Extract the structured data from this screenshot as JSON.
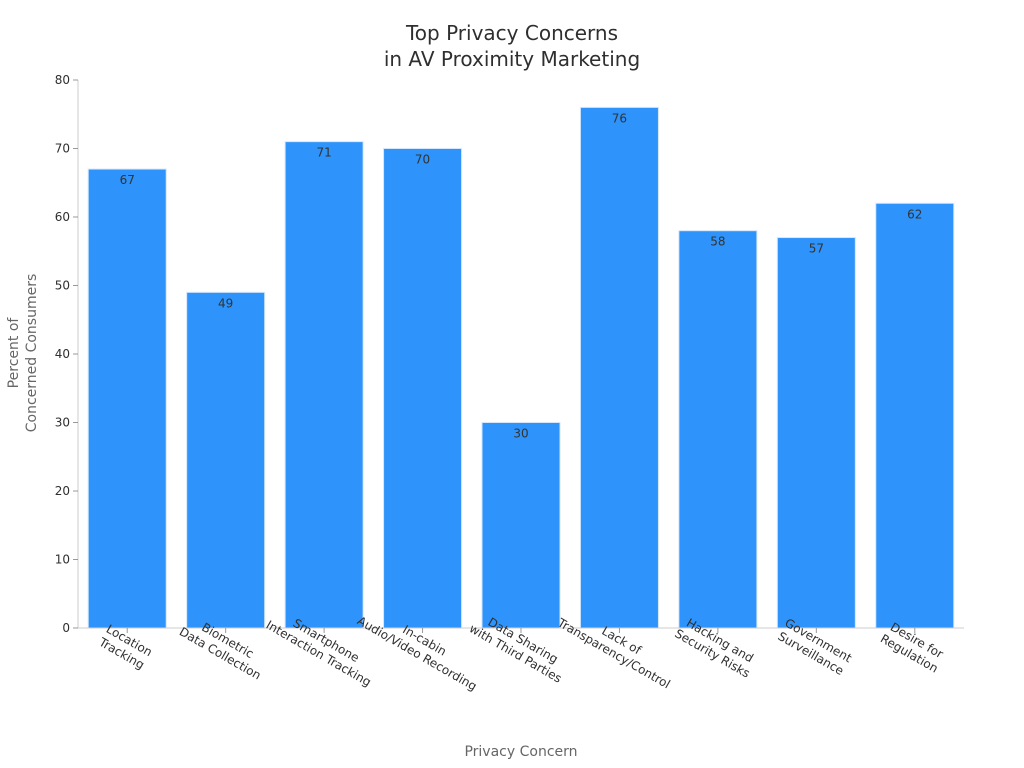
{
  "chart_data": {
    "type": "bar",
    "title_lines": [
      "Top Privacy Concerns",
      "in AV Proximity Marketing"
    ],
    "xlabel": "Privacy Concern",
    "ylabel_lines": [
      "Percent of",
      "Concerned Consumers"
    ],
    "ylim": [
      0,
      80
    ],
    "yticks": [
      0,
      10,
      20,
      30,
      40,
      50,
      60,
      70,
      80
    ],
    "categories": [
      [
        "Location",
        "Tracking"
      ],
      [
        "Biometric",
        "Data Collection"
      ],
      [
        "Smartphone",
        "Interaction Tracking"
      ],
      [
        "In-cabin",
        "Audio/Video Recording"
      ],
      [
        "Data Sharing",
        "with Third Parties"
      ],
      [
        "Lack of",
        "Transparency/Control"
      ],
      [
        "Hacking and",
        "Security Risks"
      ],
      [
        "Government",
        "Surveillance"
      ],
      [
        "Desire for",
        "Regulation"
      ]
    ],
    "values": [
      67,
      49,
      71,
      70,
      30,
      76,
      58,
      57,
      62
    ],
    "bar_color": "#2e93fa",
    "grid": false
  }
}
